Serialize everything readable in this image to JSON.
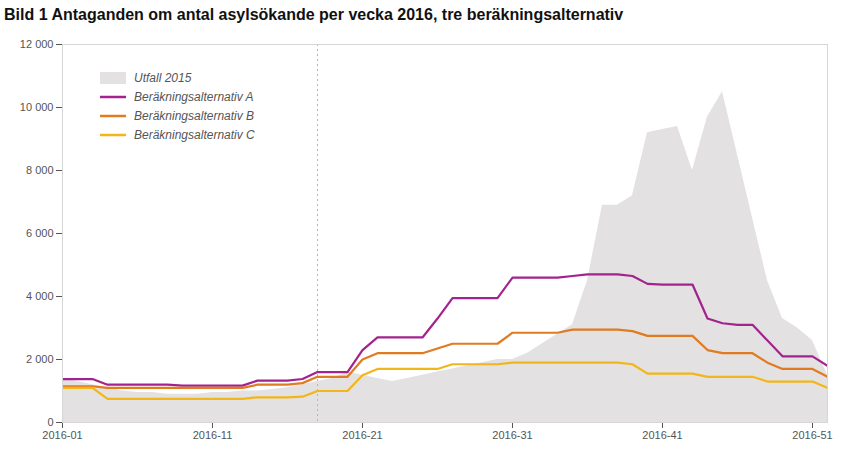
{
  "chart_data": {
    "type": "line",
    "title": "Bild 1 Antaganden om antal asylsökande per vecka 2016, tre beräkningsalternativ",
    "x": [
      1,
      2,
      3,
      4,
      5,
      6,
      7,
      8,
      9,
      10,
      11,
      12,
      13,
      14,
      15,
      16,
      17,
      18,
      19,
      20,
      21,
      22,
      23,
      24,
      25,
      26,
      27,
      28,
      29,
      30,
      31,
      32,
      33,
      34,
      35,
      36,
      37,
      38,
      39,
      40,
      41,
      42,
      43,
      44,
      45,
      46,
      47,
      48,
      49,
      50,
      51,
      52
    ],
    "series": [
      {
        "name": "Utfall 2015",
        "type": "area",
        "color": "#e3e1e1",
        "values": [
          1400,
          1300,
          1200,
          1100,
          1000,
          950,
          950,
          900,
          900,
          900,
          950,
          950,
          1000,
          1000,
          1050,
          1100,
          1200,
          1300,
          1400,
          1600,
          1500,
          1400,
          1300,
          1400,
          1500,
          1600,
          1700,
          1800,
          1900,
          2000,
          2000,
          2200,
          2500,
          2800,
          3100,
          4500,
          6900,
          6900,
          7200,
          9200,
          9300,
          9400,
          8000,
          9700,
          10500,
          8500,
          6500,
          4500,
          3300,
          3000,
          2600,
          1500
        ]
      },
      {
        "name": "Beräkningsalternativ A",
        "type": "line",
        "color": "#a3238e",
        "values": [
          1380,
          1380,
          1380,
          1200,
          1200,
          1200,
          1200,
          1200,
          1170,
          1170,
          1170,
          1170,
          1170,
          1330,
          1330,
          1330,
          1380,
          1600,
          1600,
          1600,
          2300,
          2700,
          2700,
          2700,
          2700,
          3300,
          3950,
          3950,
          3950,
          3950,
          4600,
          4600,
          4600,
          4600,
          4650,
          4700,
          4700,
          4700,
          4650,
          4400,
          4380,
          4380,
          4380,
          3300,
          3150,
          3100,
          3100,
          2600,
          2100,
          2100,
          2100,
          1800
        ]
      },
      {
        "name": "Beräkningsalternativ B",
        "type": "line",
        "color": "#e07b1f",
        "values": [
          1150,
          1150,
          1150,
          1100,
          1100,
          1100,
          1100,
          1100,
          1100,
          1100,
          1100,
          1100,
          1100,
          1200,
          1200,
          1200,
          1250,
          1450,
          1450,
          1450,
          2000,
          2200,
          2200,
          2200,
          2200,
          2350,
          2500,
          2500,
          2500,
          2500,
          2850,
          2850,
          2850,
          2850,
          2950,
          2950,
          2950,
          2950,
          2900,
          2750,
          2750,
          2750,
          2750,
          2300,
          2200,
          2200,
          2200,
          1900,
          1700,
          1700,
          1700,
          1450
        ]
      },
      {
        "name": "Beräkningsalternativ C",
        "type": "line",
        "color": "#f2b619",
        "values": [
          1100,
          1100,
          1100,
          750,
          750,
          750,
          750,
          750,
          750,
          750,
          750,
          750,
          750,
          800,
          800,
          800,
          820,
          1000,
          1000,
          1000,
          1500,
          1700,
          1700,
          1700,
          1700,
          1700,
          1850,
          1850,
          1850,
          1850,
          1900,
          1900,
          1900,
          1900,
          1900,
          1900,
          1900,
          1900,
          1850,
          1550,
          1550,
          1550,
          1550,
          1450,
          1450,
          1450,
          1450,
          1300,
          1300,
          1300,
          1300,
          1100
        ]
      }
    ],
    "vline_x": 18,
    "xlim": [
      1,
      52
    ],
    "xticks": [
      {
        "value": 1,
        "label": "2016-01"
      },
      {
        "value": 11,
        "label": "2016-11"
      },
      {
        "value": 21,
        "label": "2016-21"
      },
      {
        "value": 31,
        "label": "2016-31"
      },
      {
        "value": 41,
        "label": "2016-41"
      },
      {
        "value": 51,
        "label": "2016-51"
      }
    ],
    "ylim": [
      0,
      12000
    ],
    "yticks": [
      0,
      {
        "value": 2000,
        "label": "2 000"
      },
      {
        "value": 4000,
        "label": "4 000"
      },
      {
        "value": 6000,
        "label": "6 000"
      },
      {
        "value": 8000,
        "label": "8 000"
      },
      {
        "value": 10000,
        "label": "10 000"
      },
      {
        "value": 12000,
        "label": "12 000"
      }
    ],
    "grid": false,
    "legend": "top-left"
  }
}
